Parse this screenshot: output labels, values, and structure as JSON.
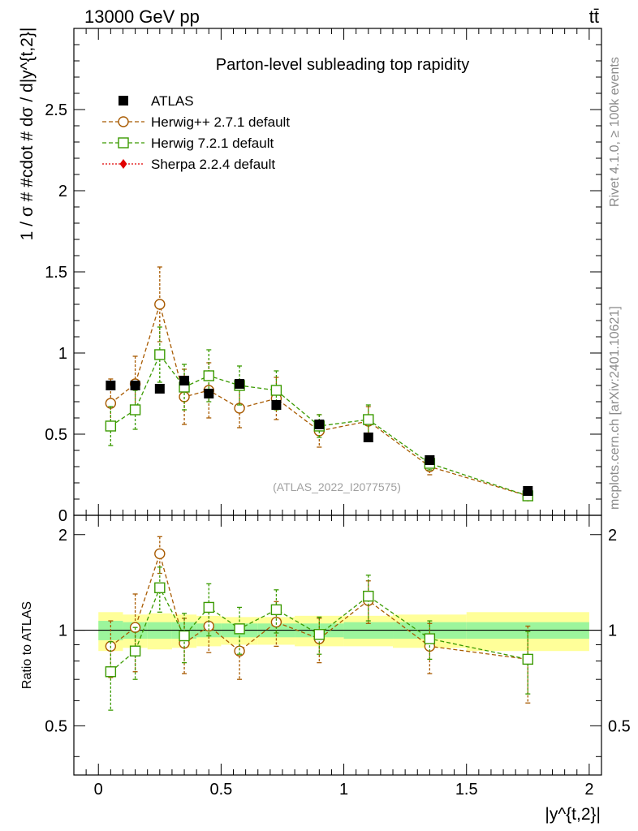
{
  "header": {
    "energy_label": "13000 GeV pp",
    "process_label": "tt̄"
  },
  "side_labels": {
    "rivet": "Rivet 4.1.0, ≥ 100k events",
    "mcplots": "mcplots.cern.ch [arXiv:2401.10621]"
  },
  "colors": {
    "atlas": "#000000",
    "herwigpp": "#a85a00",
    "herwig7": "#3a9a00",
    "sherpa": "#e00000",
    "band_inner": "#9cf59c",
    "band_outer": "#ffff99"
  },
  "chart_data": [
    {
      "type": "scatter",
      "title": "Parton-level subleading top rapidity",
      "watermark": "(ATLAS_2022_I2077575)",
      "xlabel": "|y^{t,2}|",
      "ylabel": "1 / σ # #cdot # dσ / d|y^{t,2}|",
      "xlim": [
        -0.1,
        2.05
      ],
      "ylim": [
        0,
        3.0
      ],
      "yticks": [
        0,
        0.5,
        1,
        1.5,
        2,
        2.5
      ],
      "ytick_labels": [
        "0",
        "0.5",
        "1",
        "1.5",
        "2",
        "2.5"
      ],
      "legend_position": "top-left",
      "bins": [
        [
          0,
          0.1
        ],
        [
          0.1,
          0.2
        ],
        [
          0.2,
          0.3
        ],
        [
          0.3,
          0.4
        ],
        [
          0.4,
          0.5
        ],
        [
          0.5,
          0.65
        ],
        [
          0.65,
          0.8
        ],
        [
          0.8,
          1.0
        ],
        [
          1.0,
          1.2
        ],
        [
          1.2,
          1.5
        ],
        [
          1.5,
          2.0
        ]
      ],
      "x": [
        0.05,
        0.15,
        0.25,
        0.35,
        0.45,
        0.575,
        0.725,
        0.9,
        1.1,
        1.35,
        1.75
      ],
      "series": [
        {
          "name": "ATLAS",
          "marker": "filled-square",
          "values": [
            0.8,
            0.8,
            0.78,
            0.83,
            0.75,
            0.81,
            0.68,
            0.56,
            0.48,
            0.34,
            0.15
          ]
        },
        {
          "name": "Herwig++ 2.7.1 default",
          "marker": "open-circle",
          "values": [
            0.69,
            0.81,
            1.3,
            0.73,
            0.77,
            0.66,
            0.72,
            0.52,
            0.58,
            0.3,
            0.12
          ],
          "errors": [
            0.15,
            0.17,
            0.23,
            0.17,
            0.17,
            0.12,
            0.13,
            0.1,
            0.09,
            0.05,
            0.02
          ]
        },
        {
          "name": "Herwig 7.2.1 default",
          "marker": "open-square",
          "values": [
            0.55,
            0.65,
            0.99,
            0.79,
            0.86,
            0.8,
            0.77,
            0.55,
            0.59,
            0.32,
            0.12
          ],
          "errors": [
            0.12,
            0.12,
            0.17,
            0.14,
            0.16,
            0.12,
            0.12,
            0.07,
            0.09,
            0.04,
            0.02
          ]
        },
        {
          "name": "Sherpa 2.2.4 default",
          "marker": "filled-diamond",
          "values": []
        }
      ]
    },
    {
      "type": "scatter",
      "title": "",
      "xlabel": "|y^{t,2}|",
      "ylabel": "Ratio to ATLAS",
      "xlim": [
        -0.1,
        2.05
      ],
      "ylim": [
        0.35,
        2.3
      ],
      "yticks": [
        0.5,
        1,
        2
      ],
      "ytick_labels": [
        "0.5",
        "1",
        "2"
      ],
      "xticks": [
        0,
        0.5,
        1,
        1.5,
        2
      ],
      "xtick_labels": [
        "0",
        "0.5",
        "1",
        "1.5",
        "2"
      ],
      "x": [
        0.05,
        0.15,
        0.25,
        0.35,
        0.45,
        0.575,
        0.725,
        0.9,
        1.1,
        1.35,
        1.75
      ],
      "bands": {
        "inner": [
          0.07,
          0.06,
          0.06,
          0.06,
          0.05,
          0.05,
          0.05,
          0.05,
          0.06,
          0.06,
          0.06
        ],
        "outer": [
          0.14,
          0.12,
          0.13,
          0.12,
          0.11,
          0.1,
          0.1,
          0.11,
          0.11,
          0.12,
          0.14
        ]
      },
      "series": [
        {
          "name": "Herwig++ 2.7.1 default",
          "values": [
            0.89,
            1.02,
            1.74,
            0.91,
            1.03,
            0.86,
            1.06,
            0.94,
            1.24,
            0.89,
            0.81
          ],
          "errors": [
            0.18,
            0.28,
            0.23,
            0.18,
            0.18,
            0.16,
            0.17,
            0.15,
            0.19,
            0.16,
            0.22
          ]
        },
        {
          "name": "Herwig 7.2.1 default",
          "values": [
            0.74,
            0.86,
            1.36,
            0.96,
            1.18,
            1.01,
            1.16,
            0.97,
            1.28,
            0.94,
            0.81
          ],
          "errors": [
            0.18,
            0.16,
            0.22,
            0.17,
            0.22,
            0.17,
            0.18,
            0.13,
            0.21,
            0.13,
            0.18
          ]
        }
      ]
    }
  ]
}
